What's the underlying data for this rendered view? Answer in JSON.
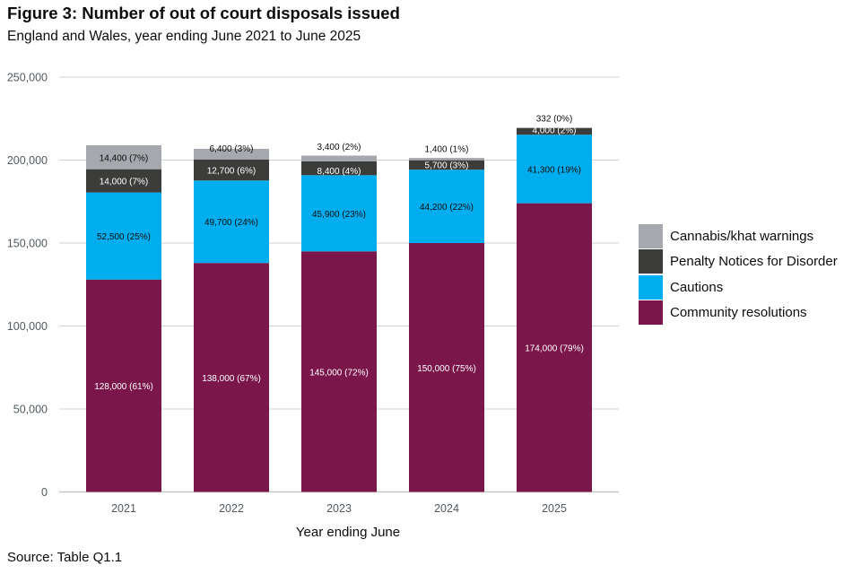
{
  "title": "Figure 3: Number of out of court disposals issued",
  "subtitle": "England and Wales, year ending June 2021 to June 2025",
  "source": "Source: Table Q1.1",
  "chart_data": {
    "type": "bar",
    "stacked": true,
    "categories": [
      "2021",
      "2022",
      "2023",
      "2024",
      "2025"
    ],
    "xlabel": "Year ending June",
    "ylabel": "",
    "ylim": [
      0,
      250000
    ],
    "yticks": [
      0,
      50000,
      100000,
      150000,
      200000,
      250000
    ],
    "ytick_labels": [
      "0",
      "50,000",
      "100,000",
      "150,000",
      "200,000",
      "250,000"
    ],
    "grid": true,
    "legend_position": "right",
    "series": [
      {
        "name": "Community resolutions",
        "color": "#7b164b",
        "values": [
          128000,
          138000,
          145000,
          150000,
          174000
        ],
        "labels": [
          "128,000 (61%)",
          "138,000 (67%)",
          "145,000 (72%)",
          "150,000 (75%)",
          "174,000 (79%)"
        ]
      },
      {
        "name": "Cautions",
        "color": "#00aeef",
        "values": [
          52500,
          49700,
          45900,
          44200,
          41300
        ],
        "labels": [
          "52,500 (25%)",
          "49,700 (24%)",
          "45,900 (23%)",
          "44,200 (22%)",
          "41,300 (19%)"
        ]
      },
      {
        "name": "Penalty Notices for Disorder",
        "color": "#3c3c3b",
        "values": [
          14000,
          12700,
          8400,
          5700,
          4000
        ],
        "labels": [
          "14,000 (7%)",
          "12,700 (6%)",
          "8,400 (4%)",
          "5,700 (3%)",
          "4,000 (2%)"
        ]
      },
      {
        "name": "Cannabis/khat warnings",
        "color": "#a5a8ad",
        "values": [
          14400,
          6400,
          3400,
          1400,
          332
        ],
        "labels": [
          "14,400 (7%)",
          "6,400 (3%)",
          "3,400 (2%)",
          "1,400 (1%)",
          "332 (0%)"
        ]
      }
    ],
    "legend_order": [
      "Cannabis/khat warnings",
      "Penalty Notices for Disorder",
      "Cautions",
      "Community resolutions"
    ]
  }
}
